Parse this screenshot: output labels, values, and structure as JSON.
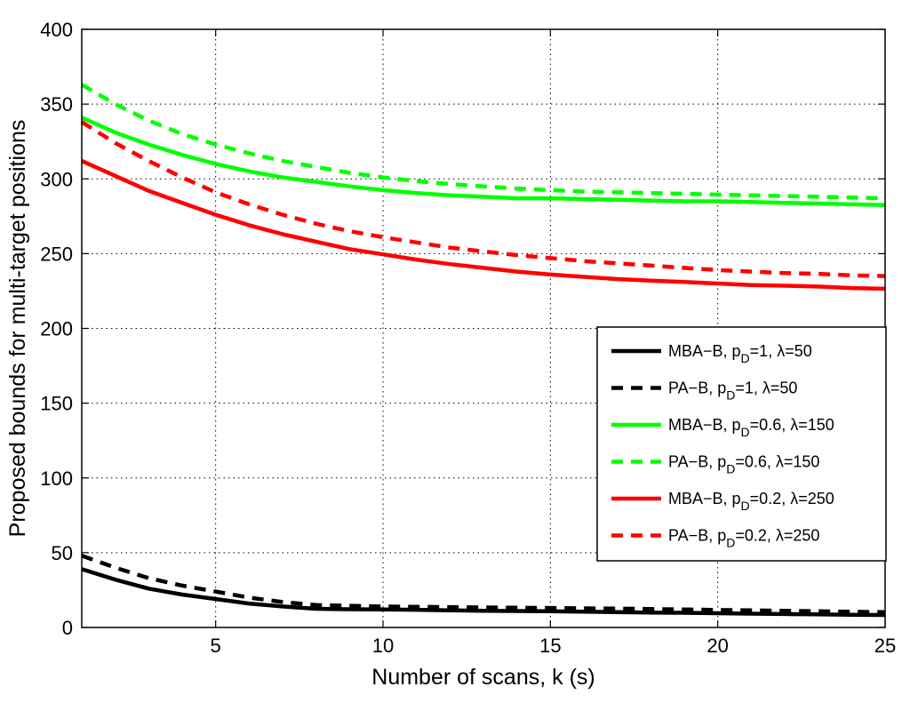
{
  "chart_data": {
    "type": "line",
    "title": "",
    "xlabel": "Number of scans, k (s)",
    "ylabel": "Proposed bounds for multi-target positions",
    "xlim": [
      1,
      25
    ],
    "ylim": [
      0,
      400
    ],
    "xticks": [
      5,
      10,
      15,
      20,
      25
    ],
    "yticks": [
      0,
      50,
      100,
      150,
      200,
      250,
      300,
      350,
      400
    ],
    "grid": true,
    "legend_position": "right",
    "x": [
      1,
      2,
      3,
      4,
      5,
      6,
      7,
      8,
      9,
      10,
      11,
      12,
      13,
      14,
      15,
      16,
      17,
      18,
      19,
      20,
      21,
      22,
      23,
      24,
      25
    ],
    "series": [
      {
        "name": "MBA−B, p_D=1, λ=50",
        "label_main": "MBA−B, p",
        "label_sub": "D",
        "label_rest": "=1, λ=50",
        "color": "#000000",
        "dashed": false,
        "values": [
          39,
          32,
          26,
          22,
          19,
          16,
          14,
          12.5,
          12.2,
          12,
          11.8,
          11.5,
          11.2,
          11,
          10.8,
          10.5,
          10.3,
          10,
          9.8,
          9.5,
          9.2,
          9,
          8.8,
          8.5,
          8.3
        ]
      },
      {
        "name": "PA−B, p_D=1, λ=50",
        "label_main": "PA−B, p",
        "label_sub": "D",
        "label_rest": "=1, λ=50",
        "color": "#000000",
        "dashed": true,
        "values": [
          48,
          40,
          33,
          28,
          24,
          20,
          17,
          15,
          14.5,
          14,
          13.8,
          13.6,
          13.4,
          13.2,
          13,
          12.8,
          12.6,
          12.3,
          12,
          11.7,
          11.4,
          11.1,
          10.8,
          10.5,
          10.2
        ]
      },
      {
        "name": "MBA−B, p_D=0.6, λ=150",
        "label_main": "MBA−B, p",
        "label_sub": "D",
        "label_rest": "=0.6, λ=150",
        "color": "#00ff00",
        "dashed": false,
        "values": [
          341,
          331,
          323,
          316,
          310,
          305,
          301,
          298,
          295,
          292.5,
          290.5,
          289,
          288,
          287,
          287,
          286.5,
          286,
          285.5,
          285,
          285,
          284.5,
          284,
          283.5,
          283,
          282.5
        ]
      },
      {
        "name": "PA−B, p_D=0.6, λ=150",
        "label_main": "PA−B, p",
        "label_sub": "D",
        "label_rest": "=0.6, λ=150",
        "color": "#00ff00",
        "dashed": true,
        "values": [
          363,
          350,
          339,
          330,
          323,
          317,
          312,
          308,
          304,
          301,
          298.5,
          296.5,
          295,
          293.5,
          292.5,
          291.5,
          291,
          290.5,
          290,
          289.5,
          289,
          288.5,
          288,
          287.5,
          287
        ]
      },
      {
        "name": "MBA−B, p_D=0.2, λ=250",
        "label_main": "MBA−B, p",
        "label_sub": "D",
        "label_rest": "=0.2, λ=250",
        "color": "#ff0000",
        "dashed": false,
        "values": [
          312,
          302,
          292,
          284,
          276,
          269,
          263,
          258,
          253,
          249.5,
          246,
          243,
          240.5,
          238,
          236,
          234.5,
          233,
          232,
          231,
          230,
          229,
          228.5,
          228,
          227,
          226.5
        ]
      },
      {
        "name": "PA−B, p_D=0.2, λ=250",
        "label_main": "PA−B, p",
        "label_sub": "D",
        "label_rest": "=0.2, λ=250",
        "color": "#ff0000",
        "dashed": true,
        "values": [
          338,
          324,
          312,
          301,
          291,
          283,
          276,
          270,
          265,
          261,
          257.5,
          254,
          251.5,
          249,
          247,
          245,
          243.5,
          242,
          240.5,
          239,
          238,
          237,
          236.5,
          235.5,
          235
        ]
      }
    ]
  }
}
